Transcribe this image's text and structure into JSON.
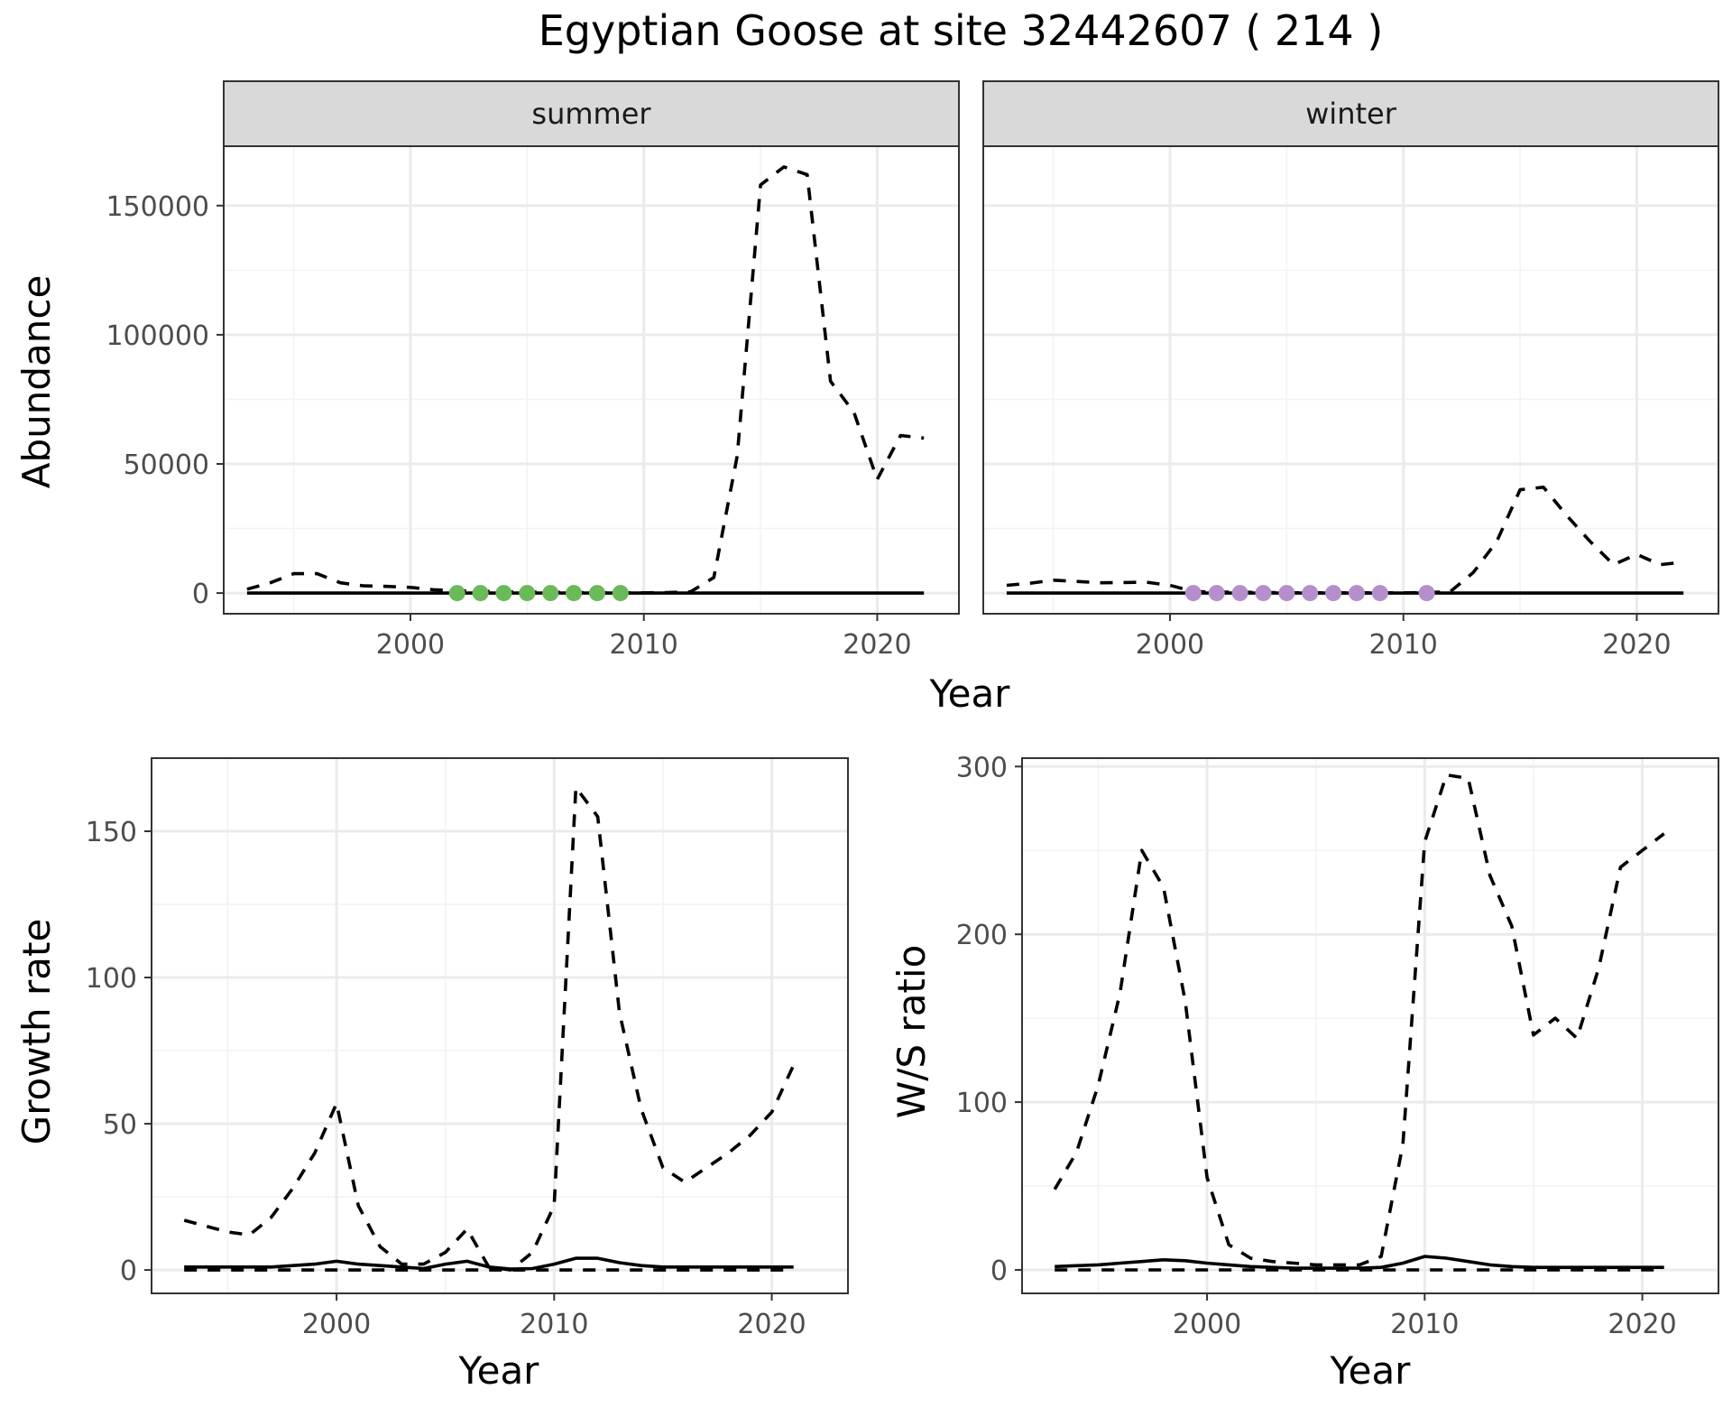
{
  "page_title": "Egyptian Goose at site 32442607 ( 214 )",
  "colors": {
    "summer_points": "#6aba5a",
    "winter_points": "#b48fcb"
  },
  "chart_data": [
    {
      "id": "abundance",
      "type": "line",
      "facet_labels": [
        "summer",
        "winter"
      ],
      "xlabel": "Year",
      "ylabel": "Abundance",
      "xlim": [
        1992,
        2023.5
      ],
      "ylim": [
        -8000,
        173000
      ],
      "x_ticks": [
        2000,
        2010,
        2020
      ],
      "y_ticks": [
        0,
        50000,
        100000,
        150000
      ],
      "grid": true,
      "facets": [
        {
          "label": "summer",
          "series": [
            {
              "style": "dashed",
              "x": [
                1993,
                1994,
                1995,
                1996,
                1997,
                1998,
                1999,
                2000,
                2001,
                2002,
                2003,
                2004,
                2005,
                2006,
                2007,
                2008,
                2009,
                2010,
                2011,
                2012,
                2013,
                2014,
                2015,
                2016,
                2017,
                2018,
                2019,
                2020,
                2021,
                2022
              ],
              "values": [
                1500,
                4000,
                7500,
                7500,
                4000,
                2800,
                2600,
                2200,
                1300,
                900,
                700,
                500,
                400,
                300,
                200,
                150,
                100,
                100,
                200,
                500,
                6000,
                53000,
                158000,
                165000,
                162000,
                82000,
                70000,
                44000,
                61000,
                60000
              ]
            },
            {
              "style": "solid",
              "x": [
                1993,
                2022
              ],
              "values": [
                0,
                0
              ]
            }
          ],
          "points": {
            "x": [
              2002,
              2003,
              2004,
              2005,
              2006,
              2007,
              2008,
              2009
            ],
            "values": [
              0,
              0,
              0,
              0,
              0,
              0,
              0,
              0
            ]
          }
        },
        {
          "label": "winter",
          "series": [
            {
              "style": "dashed",
              "x": [
                1993,
                1994,
                1995,
                1996,
                1997,
                1998,
                1999,
                2000,
                2001,
                2002,
                2003,
                2004,
                2005,
                2006,
                2007,
                2008,
                2009,
                2010,
                2011,
                2012,
                2013,
                2014,
                2015,
                2016,
                2017,
                2018,
                2019,
                2020,
                2021,
                2022
              ],
              "values": [
                3000,
                3800,
                5000,
                4500,
                4000,
                4100,
                4200,
                3000,
                600,
                400,
                300,
                200,
                150,
                100,
                100,
                100,
                100,
                100,
                200,
                500,
                8000,
                20000,
                40000,
                41000,
                30000,
                20000,
                11000,
                15000,
                11000,
                12000
              ]
            },
            {
              "style": "solid",
              "x": [
                1993,
                2022
              ],
              "values": [
                0,
                0
              ]
            }
          ],
          "points": {
            "x": [
              2001,
              2002,
              2003,
              2004,
              2005,
              2006,
              2007,
              2008,
              2009,
              2011
            ],
            "values": [
              0,
              0,
              0,
              0,
              0,
              0,
              0,
              0,
              0,
              0
            ]
          }
        }
      ]
    },
    {
      "id": "growth",
      "type": "line",
      "xlabel": "Year",
      "ylabel": "Growth rate",
      "xlim": [
        1991.5,
        2023.5
      ],
      "ylim": [
        -8,
        175
      ],
      "x_ticks": [
        2000,
        2010,
        2020
      ],
      "y_ticks": [
        0,
        50,
        100,
        150
      ],
      "grid": true,
      "series": [
        {
          "style": "dashed",
          "x": [
            1993,
            1994,
            1995,
            1996,
            1997,
            1998,
            1999,
            2000,
            2001,
            2002,
            2003,
            2004,
            2005,
            2006,
            2007,
            2008,
            2009,
            2010,
            2011,
            2012,
            2013,
            2014,
            2015,
            2016,
            2017,
            2018,
            2019,
            2020,
            2021
          ],
          "values": [
            17,
            15,
            13,
            12,
            18,
            28,
            40,
            57,
            22,
            8,
            2,
            2,
            6,
            14,
            1,
            0,
            6,
            22,
            165,
            155,
            88,
            55,
            35,
            30,
            35,
            40,
            46,
            54,
            70
          ]
        },
        {
          "style": "solid",
          "x": [
            1993,
            1994,
            1995,
            1996,
            1997,
            1998,
            1999,
            2000,
            2001,
            2002,
            2003,
            2004,
            2005,
            2006,
            2007,
            2008,
            2009,
            2010,
            2011,
            2012,
            2013,
            2014,
            2015,
            2016,
            2017,
            2018,
            2019,
            2020,
            2021
          ],
          "values": [
            1,
            1,
            1,
            1,
            1,
            1.5,
            2,
            3,
            2,
            1.5,
            1,
            0.5,
            2,
            3,
            1,
            0.3,
            0.5,
            2,
            4,
            4,
            2.5,
            1.5,
            1,
            1,
            1,
            1,
            1,
            1,
            1
          ]
        },
        {
          "style": "dashed",
          "x": [
            1993,
            2021
          ],
          "values": [
            0,
            0
          ]
        }
      ]
    },
    {
      "id": "ws_ratio",
      "type": "line",
      "xlabel": "Year",
      "ylabel": "W/S ratio",
      "xlim": [
        1991.5,
        2023.5
      ],
      "ylim": [
        -14,
        305
      ],
      "x_ticks": [
        2000,
        2010,
        2020
      ],
      "y_ticks": [
        0,
        100,
        200,
        300
      ],
      "grid": true,
      "series": [
        {
          "style": "dashed",
          "x": [
            1993,
            1994,
            1995,
            1996,
            1997,
            1998,
            1999,
            2000,
            2001,
            2002,
            2003,
            2004,
            2005,
            2006,
            2007,
            2008,
            2009,
            2010,
            2011,
            2012,
            2013,
            2014,
            2015,
            2016,
            2017,
            2018,
            2019,
            2020,
            2021
          ],
          "values": [
            48,
            70,
            110,
            165,
            250,
            228,
            160,
            55,
            15,
            7,
            5,
            4,
            3,
            3,
            3,
            8,
            75,
            255,
            295,
            293,
            235,
            205,
            140,
            150,
            138,
            180,
            240,
            250,
            260
          ]
        },
        {
          "style": "solid",
          "x": [
            1993,
            1994,
            1995,
            1996,
            1997,
            1998,
            1999,
            2000,
            2001,
            2002,
            2003,
            2004,
            2005,
            2006,
            2007,
            2008,
            2009,
            2010,
            2011,
            2012,
            2013,
            2014,
            2015,
            2016,
            2017,
            2018,
            2019,
            2020,
            2021
          ],
          "values": [
            2,
            2.5,
            3,
            4,
            5,
            6,
            5.5,
            4,
            3,
            2,
            1.5,
            1,
            1,
            1,
            1,
            1.5,
            4,
            8,
            7,
            5,
            3,
            2,
            1.5,
            1.5,
            1.5,
            1.5,
            1.5,
            1.5,
            1.5
          ]
        },
        {
          "style": "dashed",
          "x": [
            1993,
            2021
          ],
          "values": [
            0,
            0
          ]
        }
      ]
    }
  ]
}
